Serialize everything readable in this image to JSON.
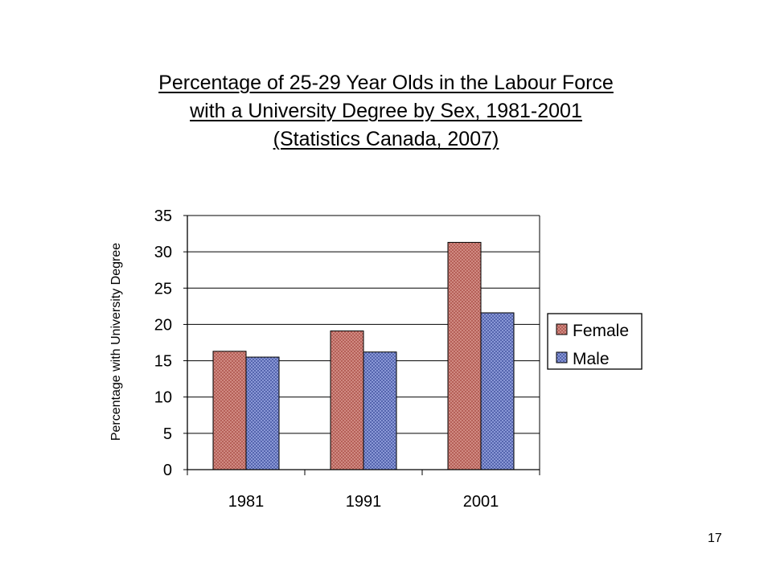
{
  "slide": {
    "title_lines": [
      "Percentage of 25-29 Year Olds in the Labour Force",
      "with a University Degree by Sex, 1981-2001",
      "(Statistics Canada, 2007)"
    ],
    "page_number": "17"
  },
  "chart_data": {
    "type": "bar",
    "title": "Percentage of 25-29 Year Olds in the Labour Force with a University Degree by Sex, 1981-2001 (Statistics Canada, 2007)",
    "xlabel": "",
    "ylabel": "Percentage with University Degree",
    "categories": [
      "1981",
      "1991",
      "2001"
    ],
    "series": [
      {
        "name": "Female",
        "values": [
          16.3,
          19.1,
          31.3
        ],
        "color": "#c0706a"
      },
      {
        "name": "Male",
        "values": [
          15.5,
          16.2,
          21.6
        ],
        "color": "#6b7bbf"
      }
    ],
    "ylim": [
      0,
      35
    ],
    "yticks": [
      "0",
      "5",
      "10",
      "15",
      "20",
      "25",
      "30",
      "35"
    ],
    "grid": true,
    "legend_position": "right"
  }
}
